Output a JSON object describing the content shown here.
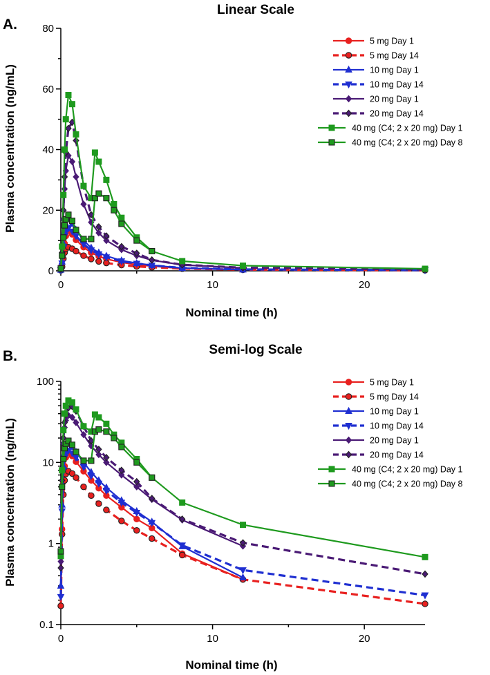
{
  "chart_data": [
    {
      "panel_label": "A.",
      "title": "Linear Scale",
      "type": "line",
      "scale": "linear",
      "xlabel": "Nominal time (h)",
      "ylabel": "Plasma concentration (ng/mL)",
      "xlim": [
        0,
        24
      ],
      "ylim": [
        0,
        80
      ],
      "xticks": [
        0,
        10,
        20
      ],
      "xtick_labels": [
        "0",
        "10",
        "20"
      ],
      "yticks": [
        0,
        20,
        40,
        60,
        80
      ],
      "ytick_labels": [
        "0",
        "20",
        "40",
        "60",
        "80"
      ],
      "legend_position": "top-right"
    },
    {
      "panel_label": "B.",
      "title": "Semi-log Scale",
      "type": "line",
      "scale": "log",
      "xlabel": "Nominal time (h)",
      "ylabel": "Plasma concentration (ng/mL)",
      "xlim": [
        0,
        24
      ],
      "ylim": [
        0.1,
        100
      ],
      "xticks": [
        0,
        10,
        20
      ],
      "xtick_labels": [
        "0",
        "10",
        "20"
      ],
      "yticks": [
        0.1,
        1,
        10,
        100
      ],
      "ytick_labels": [
        "0.1",
        "1",
        "10",
        "100"
      ],
      "legend_position": "top-right"
    }
  ],
  "series": [
    {
      "name": "5 mg Day 1",
      "color": "#e8201f",
      "dash": false,
      "marker": "circle",
      "x": [
        0,
        0.08,
        0.17,
        0.25,
        0.33,
        0.5,
        0.75,
        1,
        1.5,
        2,
        2.5,
        3,
        4,
        5,
        6,
        8,
        12
      ],
      "y": [
        0.17,
        1.5,
        5.8,
        9.0,
        11.5,
        13.2,
        12.0,
        10.2,
        7.8,
        6.0,
        4.8,
        3.9,
        2.8,
        2.0,
        1.55,
        0.75,
        0.36
      ]
    },
    {
      "name": "5 mg Day 14",
      "color": "#e8201f",
      "dash": true,
      "marker": "circle-dark",
      "x": [
        0,
        0.08,
        0.17,
        0.25,
        0.33,
        0.5,
        0.75,
        1,
        1.5,
        2,
        2.5,
        3,
        4,
        5,
        6,
        8,
        12,
        24
      ],
      "y": [
        0.17,
        1.3,
        4.0,
        6.0,
        7.2,
        7.8,
        7.3,
        6.5,
        5.0,
        3.9,
        3.1,
        2.6,
        1.9,
        1.45,
        1.15,
        0.72,
        0.36,
        0.18
      ]
    },
    {
      "name": "10 mg Day 1",
      "color": "#1f2fd1",
      "dash": false,
      "marker": "triangle-up",
      "x": [
        0,
        0.08,
        0.17,
        0.25,
        0.33,
        0.5,
        0.75,
        1,
        1.5,
        2,
        2.5,
        3,
        4,
        5,
        6,
        8,
        12
      ],
      "y": [
        0.3,
        3.0,
        9.0,
        13.0,
        15.5,
        17.2,
        15.5,
        13.5,
        10.0,
        7.6,
        6.0,
        4.9,
        3.4,
        2.5,
        1.85,
        0.92,
        0.38
      ]
    },
    {
      "name": "10 mg Day 14",
      "color": "#1f2fd1",
      "dash": true,
      "marker": "triangle-down",
      "x": [
        0,
        0.08,
        0.17,
        0.25,
        0.33,
        0.5,
        0.75,
        1,
        1.5,
        2,
        2.5,
        3,
        4,
        5,
        6,
        8,
        12,
        24
      ],
      "y": [
        0.22,
        2.5,
        8.0,
        11.5,
        13.0,
        14.0,
        13.0,
        11.5,
        8.8,
        6.8,
        5.5,
        4.5,
        3.2,
        2.4,
        1.8,
        0.95,
        0.47,
        0.23
      ]
    },
    {
      "name": "20 mg Day 1",
      "color": "#4a1a75",
      "dash": false,
      "marker": "diamond",
      "x": [
        0,
        0.08,
        0.17,
        0.25,
        0.33,
        0.5,
        0.75,
        1,
        1.5,
        2,
        2.5,
        3,
        4,
        5,
        6,
        8,
        12
      ],
      "y": [
        0.6,
        5.0,
        17.0,
        27.0,
        33.0,
        38.0,
        36.0,
        31.0,
        22.0,
        16.0,
        12.5,
        10.0,
        7.0,
        5.0,
        3.5,
        1.95,
        0.93
      ]
    },
    {
      "name": "20 mg Day 14",
      "color": "#4a1a75",
      "dash": true,
      "marker": "diamond-dark",
      "x": [
        0,
        0.08,
        0.17,
        0.25,
        0.33,
        0.5,
        0.75,
        1,
        1.5,
        2,
        2.5,
        3,
        4,
        5,
        6,
        8,
        12,
        24
      ],
      "y": [
        0.5,
        6.0,
        20.0,
        31.0,
        39.0,
        47.0,
        49.0,
        43.0,
        28.0,
        18.5,
        14.5,
        11.5,
        8.0,
        5.8,
        3.6,
        2.0,
        1.02,
        0.42
      ]
    },
    {
      "name": "40 mg (C4; 2 x 20 mg) Day 1",
      "color": "#1e9a1e",
      "dash": false,
      "marker": "square",
      "x": [
        0,
        0.08,
        0.17,
        0.25,
        0.33,
        0.5,
        0.75,
        1,
        1.5,
        2,
        2.25,
        2.5,
        3,
        3.5,
        4,
        5,
        6,
        8,
        12,
        24
      ],
      "y": [
        0.7,
        8.0,
        25.0,
        40.0,
        50.0,
        58.0,
        55.0,
        45.0,
        28.0,
        24.0,
        39.0,
        36.0,
        30.0,
        22.0,
        17.5,
        11.0,
        6.5,
        3.2,
        1.7,
        0.68
      ]
    },
    {
      "name": "40 mg (C4; 2 x 20 mg) Day 8",
      "color": "#1e9a1e",
      "dash": false,
      "marker": "square-dark",
      "x": [
        0,
        0.08,
        0.17,
        0.25,
        0.33,
        0.5,
        0.75,
        1,
        1.5,
        2,
        2.25,
        2.5,
        3,
        3.5,
        4,
        5,
        6
      ],
      "y": [
        0.8,
        5.0,
        11.0,
        15.0,
        17.0,
        18.5,
        16.5,
        13.5,
        10.5,
        10.5,
        24.0,
        25.5,
        24.0,
        20.0,
        15.5,
        10.0,
        6.5
      ]
    }
  ],
  "legend": {
    "labels": [
      "5 mg Day 1",
      "5 mg Day 14",
      "10 mg Day 1",
      "10 mg Day 14",
      "20 mg Day 1",
      "20 mg Day 14",
      "40 mg (C4; 2 x 20 mg) Day 1",
      "40 mg (C4; 2 x 20 mg) Day 8"
    ]
  }
}
